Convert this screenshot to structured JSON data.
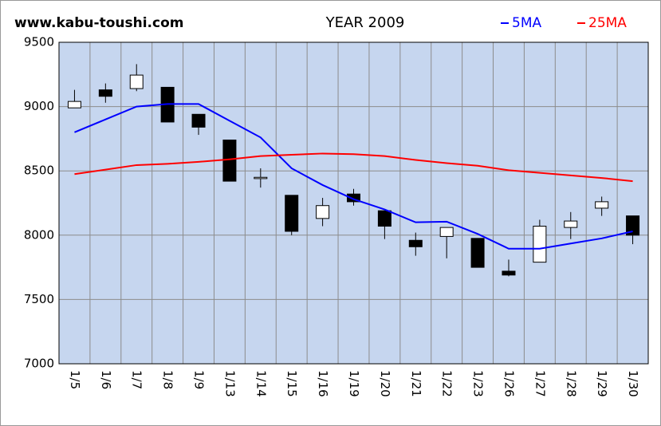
{
  "chart_data": {
    "type": "candlestick",
    "title": "YEAR 2009",
    "source": "www.kabu-toushi.com",
    "categories": [
      "1/5",
      "1/6",
      "1/7",
      "1/8",
      "1/9",
      "1/13",
      "1/14",
      "1/15",
      "1/16",
      "1/19",
      "1/20",
      "1/21",
      "1/22",
      "1/23",
      "1/26",
      "1/27",
      "1/28",
      "1/29",
      "1/30"
    ],
    "open": [
      8990,
      9130,
      9140,
      9150,
      8940,
      8740,
      8440,
      8310,
      8130,
      8320,
      8190,
      7960,
      7990,
      7975,
      7720,
      7790,
      8060,
      8210,
      8150
    ],
    "high": [
      9130,
      9180,
      9330,
      9150,
      8940,
      8740,
      8520,
      8310,
      8290,
      8360,
      8190,
      8020,
      8060,
      7975,
      7810,
      8120,
      8180,
      8300,
      8150
    ],
    "low": [
      8990,
      9030,
      9120,
      8880,
      8780,
      8420,
      8370,
      8000,
      8070,
      8230,
      7970,
      7840,
      7820,
      7750,
      7680,
      7790,
      7970,
      8150,
      7930
    ],
    "close": [
      9040,
      9080,
      9245,
      8880,
      8840,
      8420,
      8450,
      8030,
      8230,
      8260,
      8070,
      7910,
      8060,
      7750,
      7690,
      8070,
      8110,
      8260,
      8000
    ],
    "up_color": "#ffffff",
    "down_color": "#000000",
    "series": [
      {
        "name": "5MA",
        "color": "#0000ff",
        "values": [
          8800,
          8900,
          9000,
          9020,
          9020,
          8890,
          8760,
          8520,
          8390,
          8280,
          8200,
          8100,
          8105,
          8010,
          7895,
          7895,
          7935,
          7975,
          8030
        ]
      },
      {
        "name": "25MA",
        "color": "#ff0000",
        "values": [
          8475,
          8510,
          8545,
          8555,
          8570,
          8590,
          8615,
          8625,
          8635,
          8630,
          8615,
          8585,
          8560,
          8540,
          8505,
          8485,
          8465,
          8445,
          8420
        ]
      }
    ],
    "ylim": [
      7000,
      9500
    ],
    "yticks": [
      7000,
      7500,
      8000,
      8500,
      9000,
      9500
    ],
    "grid": true
  }
}
